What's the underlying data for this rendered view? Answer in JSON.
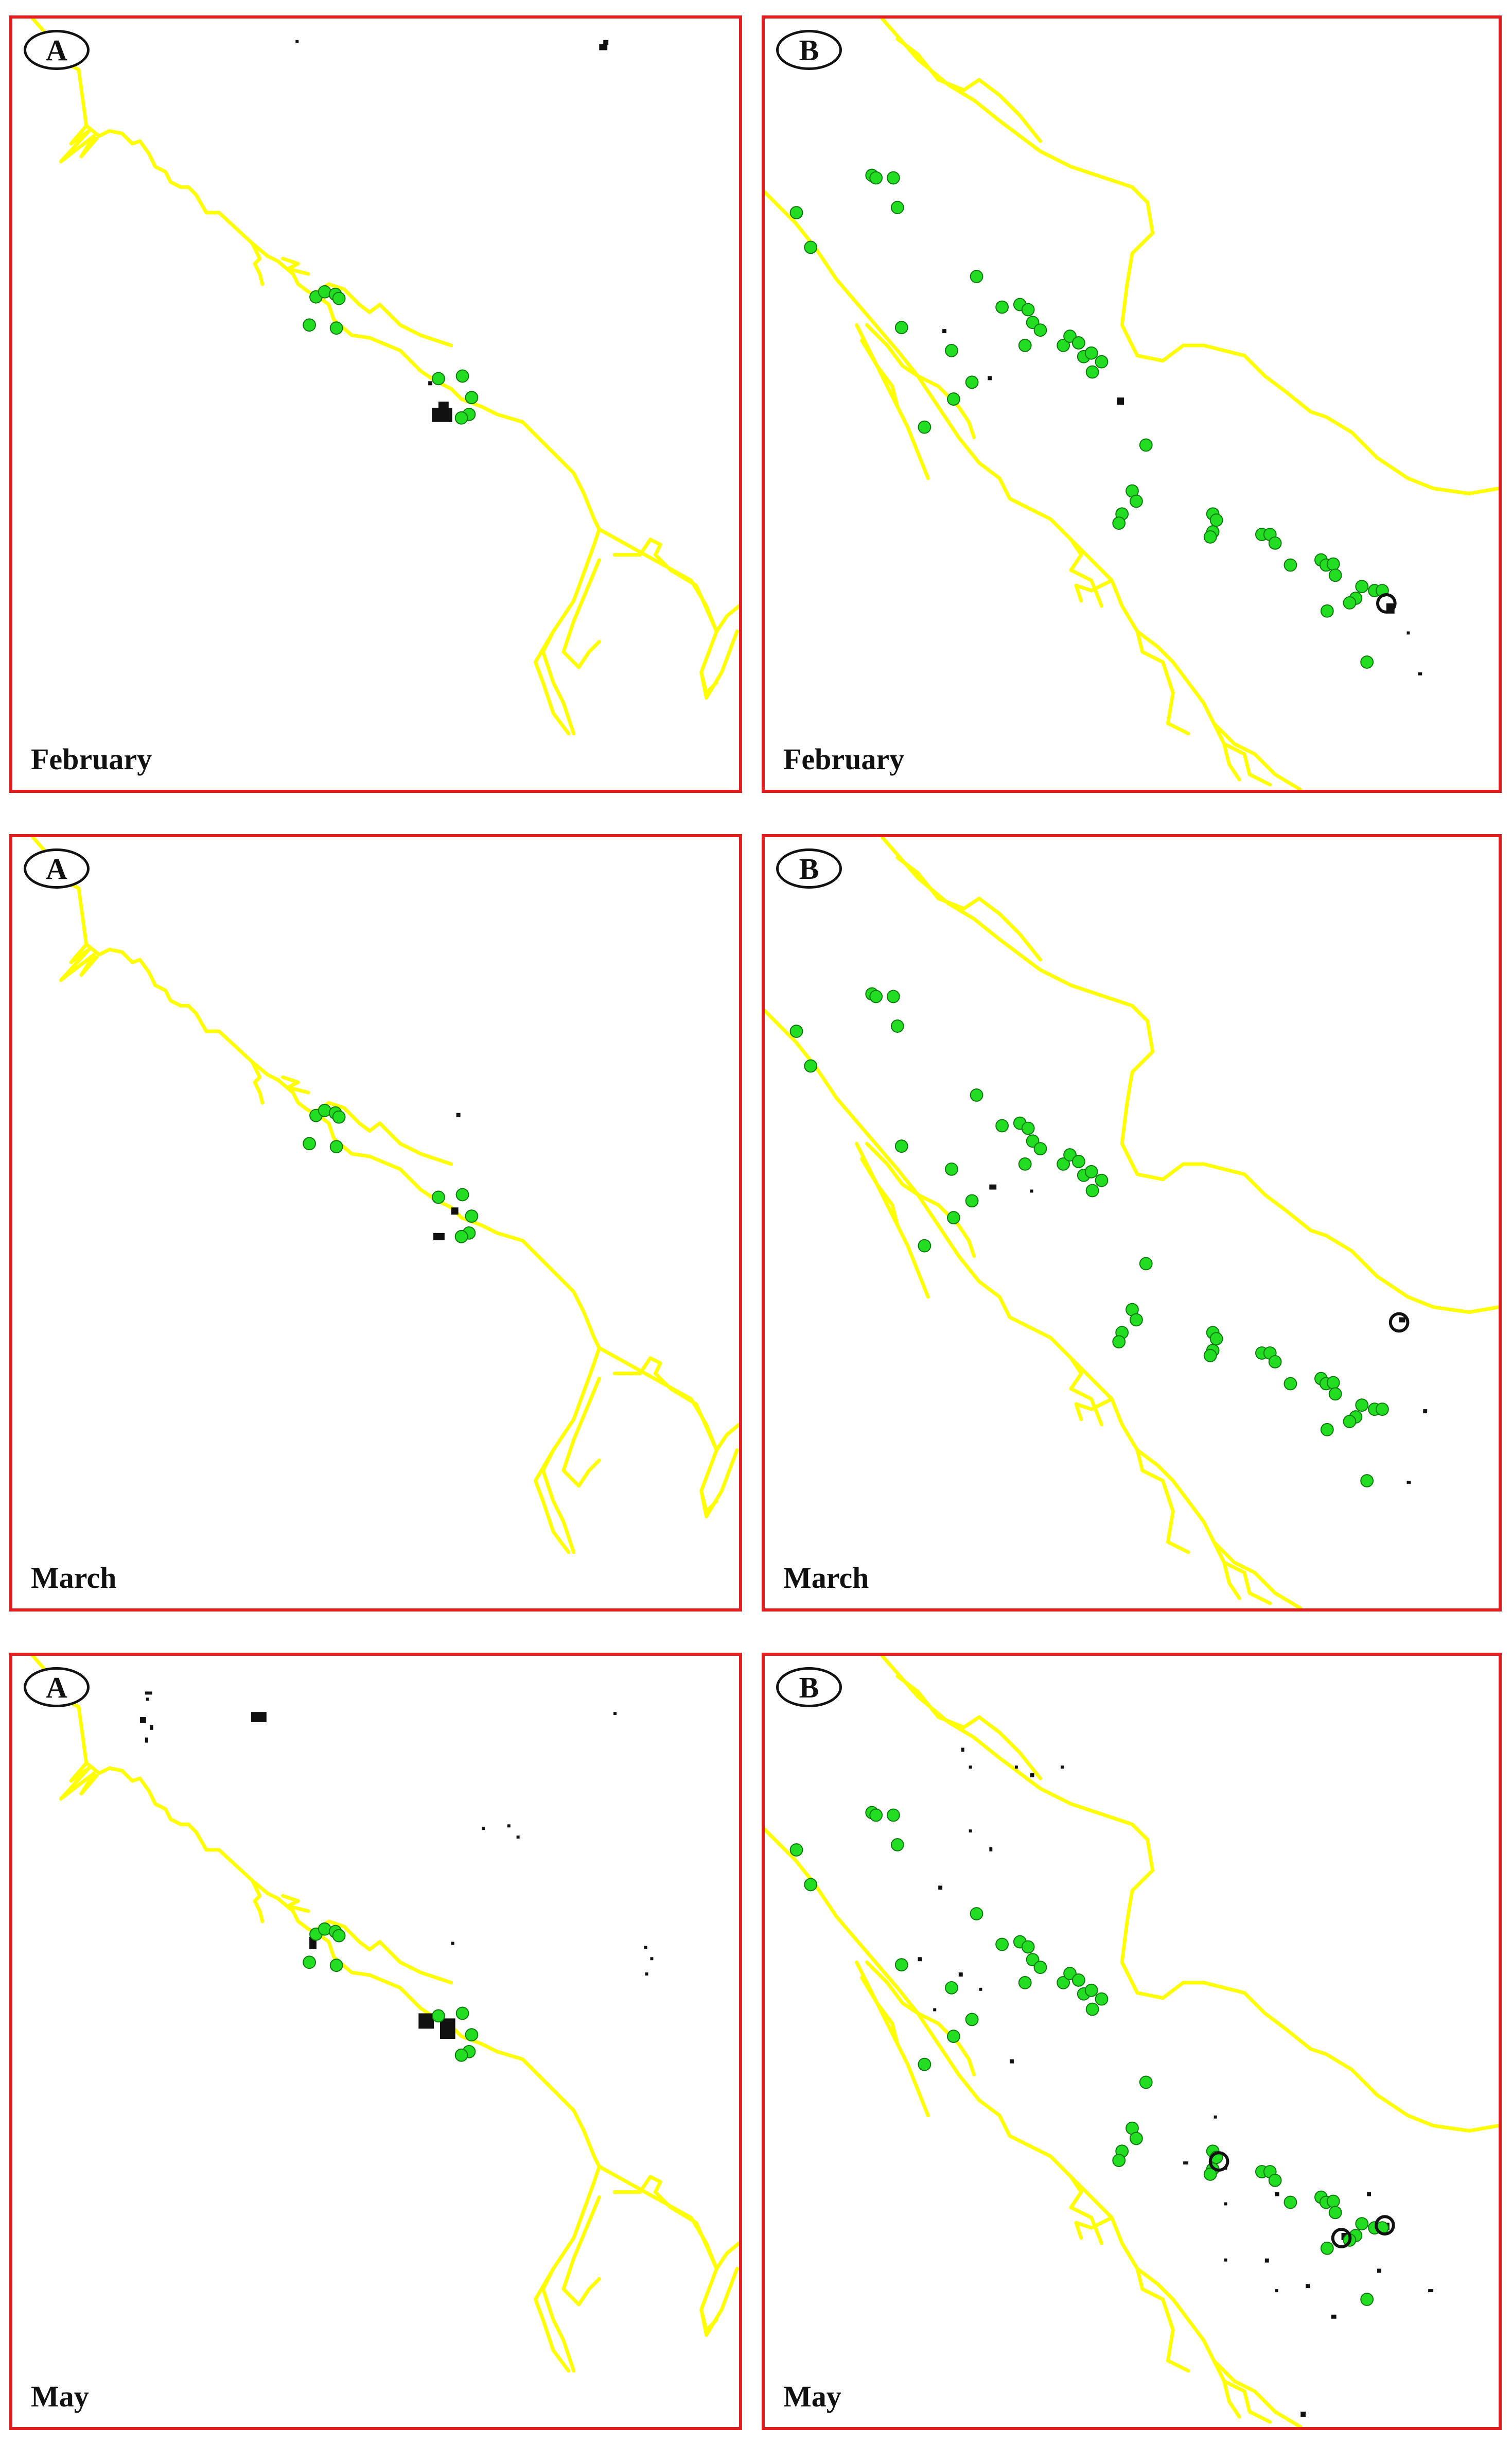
{
  "figure": {
    "panels": [
      {
        "id": "a-feb",
        "label": "A",
        "month": "February",
        "site": "A"
      },
      {
        "id": "b-feb",
        "label": "B",
        "month": "February",
        "site": "B"
      },
      {
        "id": "a-mar",
        "label": "A",
        "month": "March",
        "site": "A"
      },
      {
        "id": "b-mar",
        "label": "B",
        "month": "March",
        "site": "B"
      },
      {
        "id": "a-may",
        "label": "A",
        "month": "May",
        "site": "A"
      },
      {
        "id": "b-may",
        "label": "B",
        "month": "May",
        "site": "B"
      }
    ]
  },
  "legend_colors": {
    "coastline": "#ffff00",
    "sampling_station": "#22dd22",
    "station_outline": "#0a7a0a",
    "detected_pixels": "#111111",
    "frame": "#e02020"
  }
}
